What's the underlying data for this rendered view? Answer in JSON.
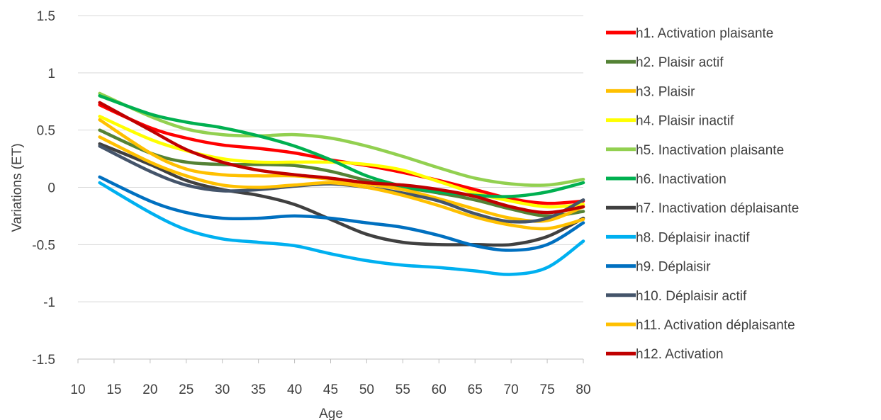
{
  "chart_data": {
    "type": "line",
    "title": "",
    "xlabel": "Age",
    "ylabel": "Variations (ET)",
    "xlim": [
      10,
      80
    ],
    "ylim": [
      -1.5,
      1.5
    ],
    "x_ticks": [
      "10",
      "15",
      "20",
      "25",
      "30",
      "35",
      "40",
      "45",
      "50",
      "55",
      "60",
      "65",
      "70",
      "75",
      "80"
    ],
    "y_ticks": [
      "1.5",
      "1",
      "0.5",
      "0",
      "-0.5",
      "-1",
      "-1.5"
    ],
    "y_tick_values": [
      1.5,
      1,
      0.5,
      0,
      -0.5,
      -1,
      -1.5
    ],
    "grid": "horizontal",
    "legend": "right",
    "x": [
      13,
      20,
      25,
      30,
      35,
      40,
      45,
      50,
      55,
      60,
      65,
      70,
      75,
      80
    ],
    "series": [
      {
        "name": "h1. Activation plaisante",
        "color": "#ff0000",
        "values": [
          0.72,
          0.52,
          0.43,
          0.37,
          0.34,
          0.3,
          0.24,
          0.19,
          0.13,
          0.06,
          -0.02,
          -0.1,
          -0.14,
          -0.12
        ]
      },
      {
        "name": "h2. Plaisir actif",
        "color": "#548235",
        "values": [
          0.5,
          0.3,
          0.22,
          0.2,
          0.2,
          0.19,
          0.14,
          0.06,
          0.0,
          -0.05,
          -0.11,
          -0.19,
          -0.25,
          -0.21
        ]
      },
      {
        "name": "h3. Plaisir",
        "color": "#ffc000",
        "values": [
          0.59,
          0.3,
          0.16,
          0.11,
          0.1,
          0.1,
          0.07,
          0.03,
          -0.02,
          -0.1,
          -0.19,
          -0.27,
          -0.29,
          -0.17
        ]
      },
      {
        "name": "h4. Plaisir inactif",
        "color": "#ffff00",
        "values": [
          0.62,
          0.42,
          0.32,
          0.25,
          0.22,
          0.22,
          0.22,
          0.2,
          0.15,
          0.05,
          -0.05,
          -0.12,
          -0.17,
          -0.15
        ]
      },
      {
        "name": "h5. Inactivation plaisante",
        "color": "#92d050",
        "values": [
          0.82,
          0.62,
          0.51,
          0.46,
          0.45,
          0.46,
          0.43,
          0.36,
          0.27,
          0.17,
          0.08,
          0.03,
          0.02,
          0.07
        ]
      },
      {
        "name": "h6. Inactivation",
        "color": "#00b050",
        "values": [
          0.8,
          0.64,
          0.57,
          0.52,
          0.45,
          0.36,
          0.24,
          0.1,
          0.01,
          -0.04,
          -0.07,
          -0.08,
          -0.04,
          0.04
        ]
      },
      {
        "name": "h7. Inactivation déplaisante",
        "color": "#404040",
        "values": [
          0.38,
          0.2,
          0.06,
          -0.02,
          -0.07,
          -0.15,
          -0.28,
          -0.41,
          -0.48,
          -0.5,
          -0.5,
          -0.5,
          -0.43,
          -0.27
        ]
      },
      {
        "name": "h8. Déplaisir inactif",
        "color": "#00b0f0",
        "values": [
          0.04,
          -0.22,
          -0.37,
          -0.45,
          -0.48,
          -0.51,
          -0.58,
          -0.64,
          -0.68,
          -0.7,
          -0.73,
          -0.76,
          -0.7,
          -0.47
        ]
      },
      {
        "name": "h9. Déplaisir",
        "color": "#0070c0",
        "values": [
          0.09,
          -0.12,
          -0.22,
          -0.27,
          -0.27,
          -0.25,
          -0.27,
          -0.31,
          -0.35,
          -0.42,
          -0.51,
          -0.55,
          -0.5,
          -0.31
        ]
      },
      {
        "name": "h10. Déplaisir actif",
        "color": "#44546a",
        "values": [
          0.36,
          0.14,
          0.02,
          -0.03,
          -0.02,
          0.01,
          0.03,
          0.0,
          -0.05,
          -0.12,
          -0.23,
          -0.3,
          -0.27,
          -0.11
        ]
      },
      {
        "name": "h11. Activation déplaisante",
        "color": "#ffc000",
        "values": [
          0.44,
          0.22,
          0.1,
          0.02,
          0.0,
          0.02,
          0.04,
          0.0,
          -0.07,
          -0.16,
          -0.26,
          -0.33,
          -0.36,
          -0.28
        ]
      },
      {
        "name": "h12. Activation",
        "color": "#c00000",
        "values": [
          0.74,
          0.5,
          0.33,
          0.22,
          0.15,
          0.11,
          0.08,
          0.04,
          0.02,
          -0.02,
          -0.08,
          -0.17,
          -0.22,
          -0.17
        ]
      }
    ]
  }
}
